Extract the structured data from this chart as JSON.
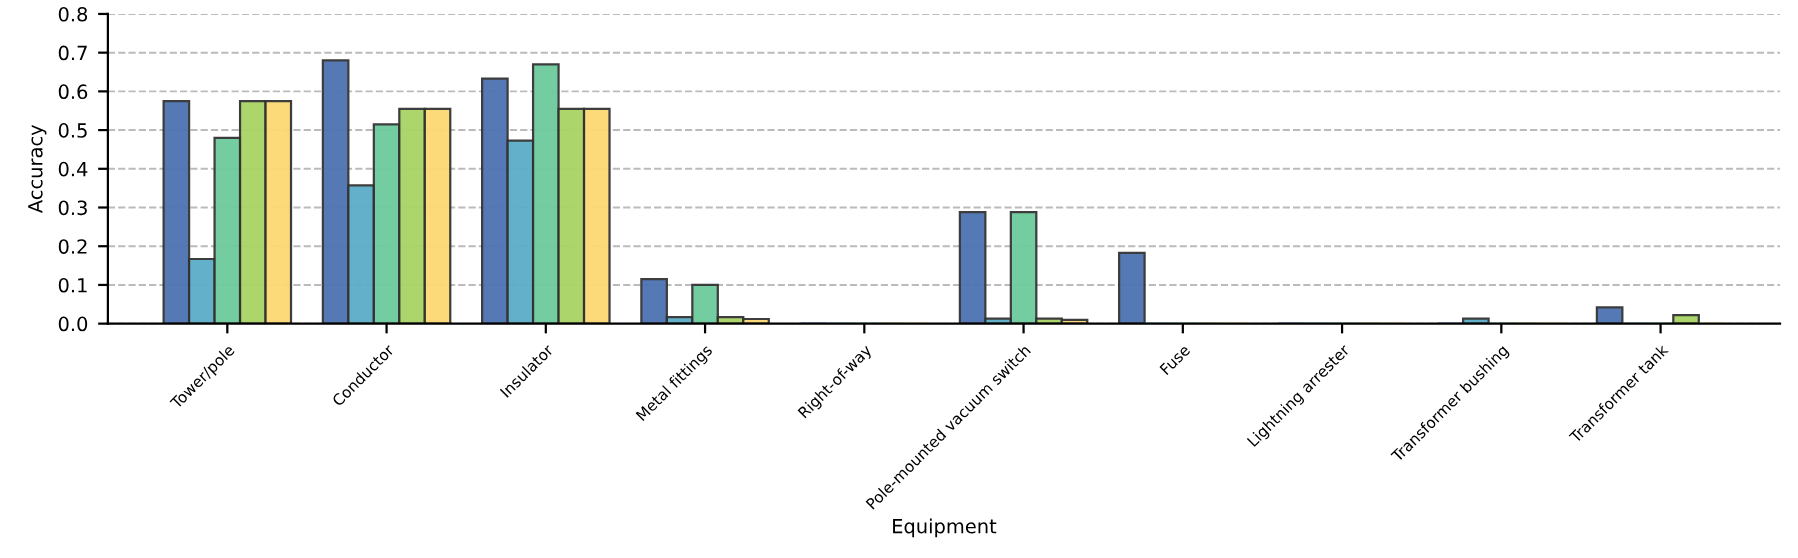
{
  "chart_data": {
    "type": "bar",
    "xlabel": "Equipment",
    "ylabel": "Accuracy",
    "categories": [
      "Tower/pole",
      "Conductor",
      "Insulator",
      "Metal fittings",
      "Right-of-way",
      "Pole-mounted vacuum switch",
      "Fuse",
      "Lightning arrester",
      "Transformer bushing",
      "Transformer tank"
    ],
    "series": [
      {
        "color": "#4c72b0",
        "values": [
          0.575,
          0.68,
          0.633,
          0.115,
          0,
          0.288,
          0.183,
          0,
          0,
          0.042
        ]
      },
      {
        "color": "#5bacc8",
        "values": [
          0.167,
          0.357,
          0.473,
          0.017,
          0,
          0.013,
          0,
          0,
          0.013,
          0
        ]
      },
      {
        "color": "#6ccb9c",
        "values": [
          0.48,
          0.515,
          0.67,
          0.1,
          0,
          0.288,
          0,
          0,
          0,
          0
        ]
      },
      {
        "color": "#a8d464",
        "values": [
          0.575,
          0.555,
          0.555,
          0.017,
          0,
          0.013,
          0,
          0,
          0,
          0.022
        ]
      },
      {
        "color": "#fcd873",
        "values": [
          0.575,
          0.555,
          0.555,
          0.012,
          0,
          0.01,
          0,
          0,
          0,
          0
        ]
      }
    ],
    "ylim": [
      0,
      0.8
    ],
    "yticks": [
      {
        "value": 0,
        "label": "0.0"
      },
      {
        "value": 0.1,
        "label": "0.1"
      },
      {
        "value": 0.2,
        "label": "0.2"
      },
      {
        "value": 0.3,
        "label": "0.3"
      },
      {
        "value": 0.4,
        "label": "0.4"
      },
      {
        "value": 0.5,
        "label": "0.5"
      },
      {
        "value": 0.6,
        "label": "0.6"
      },
      {
        "value": 0.7,
        "label": "0.7"
      },
      {
        "value": 0.8,
        "label": "0.8"
      }
    ],
    "grid": "y"
  }
}
